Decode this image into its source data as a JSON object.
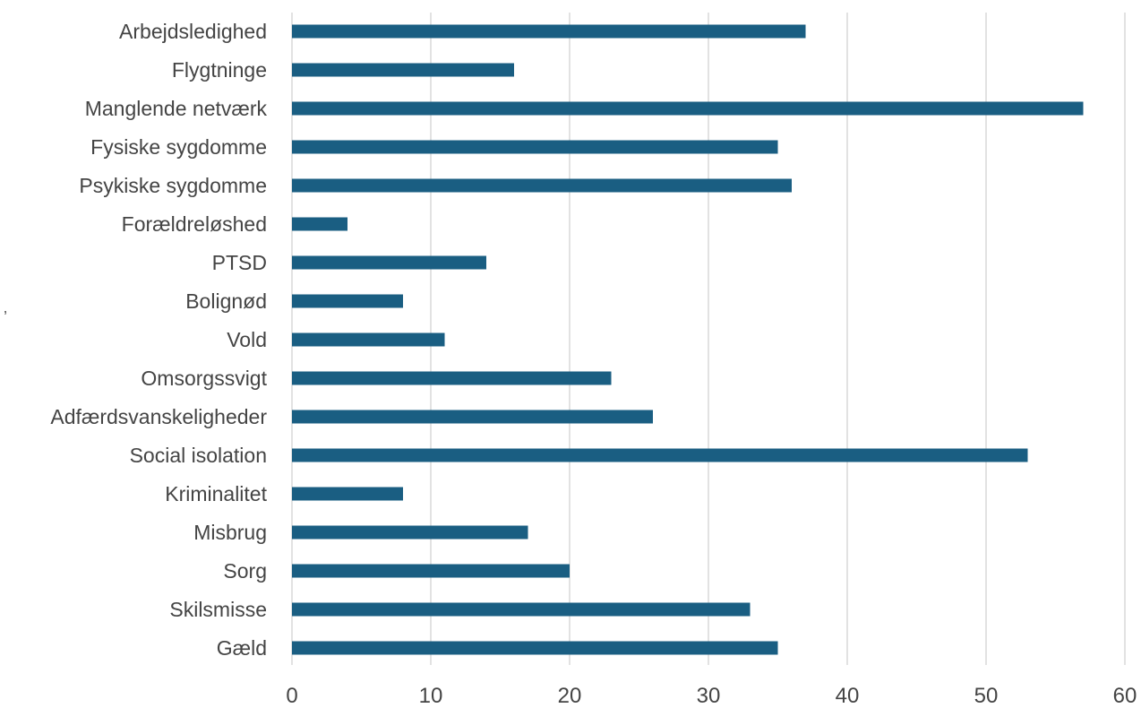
{
  "stray_mark": "’",
  "chart_data": {
    "type": "bar",
    "orientation": "horizontal",
    "title": "",
    "xlabel": "",
    "ylabel": "",
    "xlim": [
      0,
      60
    ],
    "x_ticks": [
      0,
      10,
      20,
      30,
      40,
      50,
      60
    ],
    "grid": "vertical",
    "legend": "none",
    "bar_color": "#1a5e82",
    "categories": [
      "Arbejdsledighed",
      "Flygtninge",
      "Manglende netværk",
      "Fysiske sygdomme",
      "Psykiske sygdomme",
      "Forældreløshed",
      "PTSD",
      "Bolignød",
      "Vold",
      "Omsorgssvigt",
      "Adfærdsvanskeligheder",
      "Social isolation",
      "Kriminalitet",
      "Misbrug",
      "Sorg",
      "Skilsmisse",
      "Gæld"
    ],
    "values": [
      37,
      16,
      57,
      35,
      36,
      4,
      14,
      8,
      11,
      23,
      26,
      53,
      8,
      17,
      20,
      33,
      35
    ]
  }
}
